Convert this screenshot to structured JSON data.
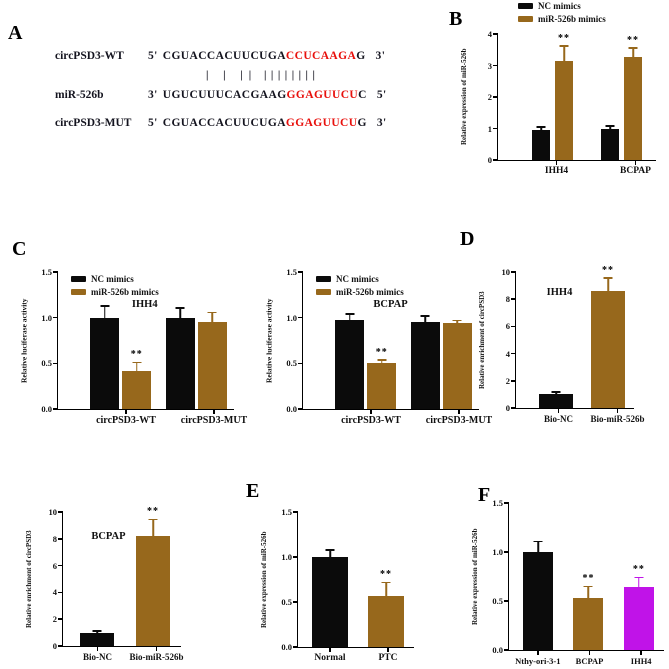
{
  "figure": {
    "background": "#ffffff",
    "colors": {
      "black_bar": "#0b0b0b",
      "brown_bar": "#97681C",
      "magenta_bar": "#C013E8",
      "sequence_red": "#e8100c",
      "text": "#111111"
    }
  },
  "panels": {
    "a": {
      "label": "A",
      "rows": [
        {
          "name": "circPSD3-WT",
          "p5": "5'",
          "black1": "CGUACCACUUCUGA",
          "red": "CCUCAAGA",
          "black2": "G",
          "p3": "3'"
        },
        {
          "name": "miR-526b",
          "p5": "3'",
          "black1": "UGUCUUUCACGAAG",
          "red": "GGAGUUCU",
          "black2": "C",
          "p3": "5'"
        },
        {
          "name": "circPSD3-MUT",
          "p5": "5'",
          "black1": "CGUACCACUUCUGA",
          "red": "GGAGUUCU",
          "black2": "G",
          "p3": "3'"
        }
      ],
      "pipes1": "| | ||",
      "pipes2": "||||||||"
    },
    "b": {
      "label": "B"
    },
    "c": {
      "label": "C"
    },
    "d": {
      "label": "D"
    },
    "e": {
      "label": "E"
    },
    "f": {
      "label": "F"
    }
  },
  "chart_data": {
    "B": {
      "type": "bar",
      "ylabel": "Relative expression of miR-526b",
      "ylim": [
        0,
        4
      ],
      "yticks": [
        "0",
        "1",
        "2",
        "3",
        "4"
      ],
      "categories": [
        "IHH4",
        "BCPAP"
      ],
      "series": [
        {
          "name": "NC mimics",
          "color": "#0b0b0b",
          "values": [
            0.95,
            0.97
          ],
          "errors": [
            0.08,
            0.08
          ],
          "sig": [
            "",
            ""
          ]
        },
        {
          "name": "miR-526b mimics",
          "color": "#97681C",
          "values": [
            3.15,
            3.28
          ],
          "errors": [
            0.45,
            0.26
          ],
          "sig": [
            "**",
            "**"
          ]
        }
      ],
      "legend": true,
      "legend_position": "above"
    },
    "C1": {
      "type": "bar",
      "title": "IHH4",
      "ylabel": "Relative luciferase activity",
      "ylim": [
        0,
        1.5
      ],
      "yticks": [
        "0.0",
        "0.5",
        "1.0",
        "1.5"
      ],
      "categories": [
        "circPSD3-WT",
        "circPSD3-MUT"
      ],
      "series": [
        {
          "name": "NC mimics",
          "color": "#0b0b0b",
          "values": [
            1.0,
            1.0
          ],
          "errors": [
            0.12,
            0.1
          ],
          "sig": [
            "",
            ""
          ]
        },
        {
          "name": "miR-526b mimics",
          "color": "#97681C",
          "values": [
            0.42,
            0.95
          ],
          "errors": [
            0.08,
            0.1
          ],
          "sig": [
            "**",
            ""
          ]
        }
      ],
      "legend": true,
      "legend_position": "inside-top-left"
    },
    "C2": {
      "type": "bar",
      "title": "BCPAP",
      "ylabel": "Relative luciferase activity",
      "ylim": [
        0,
        1.5
      ],
      "yticks": [
        "0.0",
        "0.5",
        "1.0",
        "1.5"
      ],
      "categories": [
        "circPSD3-WT",
        "circPSD3-MUT"
      ],
      "series": [
        {
          "name": "NC mimics",
          "color": "#0b0b0b",
          "values": [
            0.97,
            0.95
          ],
          "errors": [
            0.06,
            0.06
          ],
          "sig": [
            "",
            ""
          ]
        },
        {
          "name": "miR-526b mimics",
          "color": "#97681C",
          "values": [
            0.5,
            0.94
          ],
          "errors": [
            0.03,
            0.02
          ],
          "sig": [
            "**",
            ""
          ]
        }
      ],
      "legend": true,
      "legend_position": "inside-top-left"
    },
    "D1": {
      "type": "bar",
      "title": "IHH4",
      "ylabel": "Relative enrichment of circPSD3",
      "ylim": [
        0,
        10
      ],
      "yticks": [
        "0",
        "2",
        "4",
        "6",
        "8",
        "10"
      ],
      "categories": [
        "Bio-NC",
        "Bio-miR-526b"
      ],
      "series": [
        {
          "name": "",
          "colors": [
            "#0b0b0b",
            "#97681C"
          ],
          "values": [
            1.0,
            8.6
          ],
          "errors": [
            0.12,
            0.9
          ],
          "sig": [
            "",
            "**"
          ]
        }
      ],
      "legend": false
    },
    "D2": {
      "type": "bar",
      "title": "BCPAP",
      "ylabel": "Relative enrichment of circPSD3",
      "ylim": [
        0,
        10
      ],
      "yticks": [
        "0",
        "2",
        "4",
        "6",
        "8",
        "10"
      ],
      "categories": [
        "Bio-NC",
        "Bio-miR-526b"
      ],
      "series": [
        {
          "name": "",
          "colors": [
            "#0b0b0b",
            "#97681C"
          ],
          "values": [
            1.0,
            8.2
          ],
          "errors": [
            0.06,
            1.2
          ],
          "sig": [
            "",
            "**"
          ]
        }
      ],
      "legend": false
    },
    "E": {
      "type": "bar",
      "ylabel": "Relative expression of miR-526b",
      "ylim": [
        0,
        1.5
      ],
      "yticks": [
        "0.0",
        "0.5",
        "1.0",
        "1.5"
      ],
      "categories": [
        "Normal",
        "PTC"
      ],
      "series": [
        {
          "name": "",
          "colors": [
            "#0b0b0b",
            "#97681C"
          ],
          "values": [
            1.0,
            0.57
          ],
          "errors": [
            0.07,
            0.14
          ],
          "sig": [
            "",
            "**"
          ]
        }
      ],
      "legend": false
    },
    "F": {
      "type": "bar",
      "ylabel": "Relative expression of miR-526b",
      "ylim": [
        0,
        1.5
      ],
      "yticks": [
        "0.0",
        "0.5",
        "1.0",
        "1.5"
      ],
      "categories": [
        "Nthy-ori-3-1",
        "BCPAP",
        "IHH4"
      ],
      "series": [
        {
          "name": "",
          "colors": [
            "#0b0b0b",
            "#97681C",
            "#C013E8"
          ],
          "values": [
            1.0,
            0.53,
            0.64
          ],
          "errors": [
            0.1,
            0.11,
            0.09
          ],
          "sig": [
            "",
            "**",
            "**"
          ]
        }
      ],
      "legend": false
    }
  }
}
